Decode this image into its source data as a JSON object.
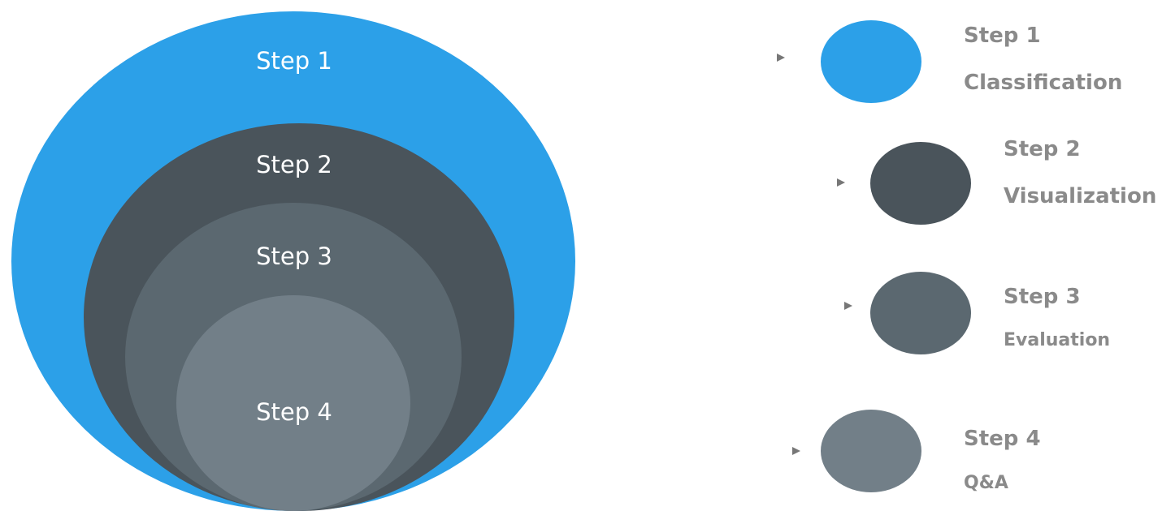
{
  "colors": {
    "step1": "#2ca0e8",
    "step2": "#4a545b",
    "step3": "#5b6870",
    "step4": "#727f88",
    "legend_text": "#8a8a8a",
    "arrow": "#888888"
  },
  "rings": [
    {
      "label": "Step 1"
    },
    {
      "label": "Step 2"
    },
    {
      "label": "Step 3"
    },
    {
      "label": "Step 4"
    }
  ],
  "legend": [
    {
      "title": "Step 1",
      "desc": "Classification"
    },
    {
      "title": "Step 2",
      "desc": "Visualization"
    },
    {
      "title": "Step 3",
      "desc": "Evaluation"
    },
    {
      "title": "Step 4",
      "desc": "Q&A"
    }
  ]
}
